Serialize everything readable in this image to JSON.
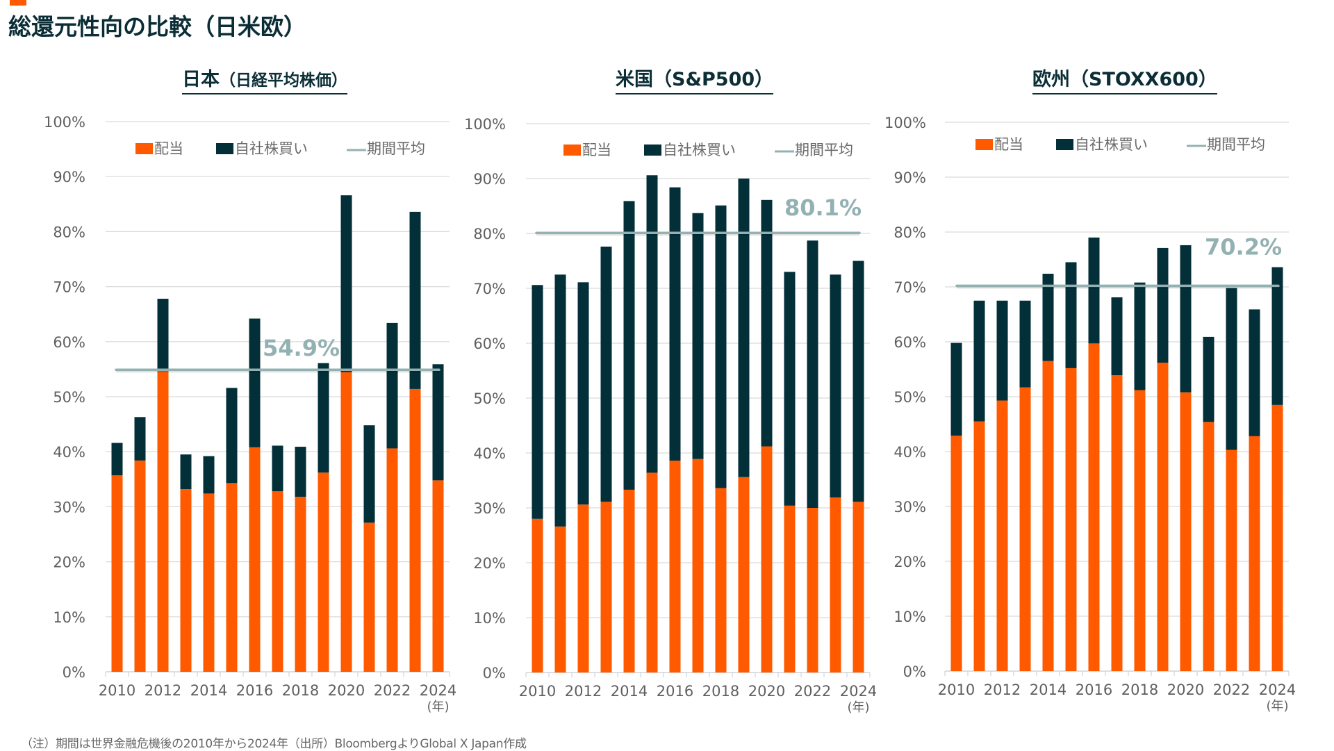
{
  "title": "総還元性向の比較（日米欧）",
  "footnote": "（注）期間は世界金融危機後の2010年から2024年（出所）BloombergよりGlobal X Japan作成",
  "colors": {
    "accent": "#ff5a00",
    "dividend": "#ff5a00",
    "buyback": "#032f38",
    "average": "#93b1b2",
    "grid": "#d9d9d9",
    "title": "#0b2e36"
  },
  "legend": {
    "dividend": "配当",
    "buyback": "自社株買い",
    "average": "期間平均"
  },
  "chart_data": [
    {
      "type": "bar",
      "stacked": true,
      "title": "日本",
      "subtitle": "（日経平均株価）",
      "xlabel": "",
      "x_unit": "(年)",
      "ylabel": "",
      "ylim": [
        0,
        100
      ],
      "y_ticks": [
        "0%",
        "10%",
        "20%",
        "30%",
        "40%",
        "50%",
        "60%",
        "70%",
        "80%",
        "90%",
        "100%"
      ],
      "grid": true,
      "legend_position": "top",
      "categories": [
        "2010",
        "2011",
        "2012",
        "2013",
        "2014",
        "2015",
        "2016",
        "2017",
        "2018",
        "2019",
        "2020",
        "2021",
        "2022",
        "2023",
        "2024"
      ],
      "x_tick_labels": [
        "2010",
        "2012",
        "2014",
        "2016",
        "2018",
        "2020",
        "2022",
        "2024"
      ],
      "series": [
        {
          "name": "配当",
          "values": [
            35.7,
            38.4,
            54.8,
            33.2,
            32.4,
            34.3,
            40.8,
            32.8,
            31.8,
            36.2,
            54.5,
            27.1,
            40.6,
            51.4,
            34.8
          ]
        },
        {
          "name": "自社株買い",
          "values": [
            5.9,
            7.9,
            13.0,
            6.3,
            6.8,
            17.3,
            23.4,
            8.3,
            9.1,
            19.9,
            32.1,
            17.7,
            22.8,
            32.2,
            21.1
          ]
        }
      ],
      "totals": [
        41.6,
        46.3,
        67.8,
        39.5,
        39.2,
        51.6,
        64.2,
        41.1,
        40.9,
        56.1,
        86.6,
        44.8,
        63.4,
        83.6,
        55.9
      ],
      "average": 54.9,
      "average_label": "54.9%"
    },
    {
      "type": "bar",
      "stacked": true,
      "title": "米国",
      "subtitle": "（S&P500）",
      "xlabel": "",
      "x_unit": "(年)",
      "ylabel": "",
      "ylim": [
        0,
        100
      ],
      "y_ticks": [
        "0%",
        "10%",
        "20%",
        "30%",
        "40%",
        "50%",
        "60%",
        "70%",
        "80%",
        "90%",
        "100%"
      ],
      "grid": true,
      "legend_position": "top",
      "categories": [
        "2010",
        "2011",
        "2012",
        "2013",
        "2014",
        "2015",
        "2016",
        "2017",
        "2018",
        "2019",
        "2020",
        "2021",
        "2022",
        "2023",
        "2024"
      ],
      "x_tick_labels": [
        "2010",
        "2012",
        "2014",
        "2016",
        "2018",
        "2020",
        "2022",
        "2024"
      ],
      "series": [
        {
          "name": "配当",
          "values": [
            28.0,
            26.6,
            30.6,
            31.1,
            33.3,
            36.4,
            38.6,
            38.9,
            33.6,
            35.6,
            41.2,
            30.4,
            30.0,
            31.9,
            31.1
          ]
        },
        {
          "name": "自社株買い",
          "values": [
            42.6,
            45.9,
            40.5,
            46.5,
            52.6,
            54.2,
            49.8,
            44.8,
            51.5,
            54.4,
            44.9,
            42.6,
            48.7,
            40.6,
            43.9
          ]
        }
      ],
      "totals": [
        70.6,
        72.5,
        71.1,
        77.6,
        85.9,
        90.6,
        88.4,
        83.7,
        85.1,
        90.0,
        86.1,
        73.0,
        78.7,
        72.5,
        75.0
      ],
      "average": 80.1,
      "average_label": "80.1%"
    },
    {
      "type": "bar",
      "stacked": true,
      "title": "欧州",
      "subtitle": "（STOXX600）",
      "xlabel": "",
      "x_unit": "(年)",
      "ylabel": "",
      "ylim": [
        0,
        100
      ],
      "y_ticks": [
        "0%",
        "10%",
        "20%",
        "30%",
        "40%",
        "50%",
        "60%",
        "70%",
        "80%",
        "90%",
        "100%"
      ],
      "grid": true,
      "legend_position": "top",
      "categories": [
        "2010",
        "2011",
        "2012",
        "2013",
        "2014",
        "2015",
        "2016",
        "2017",
        "2018",
        "2019",
        "2020",
        "2021",
        "2022",
        "2023",
        "2024"
      ],
      "x_tick_labels": [
        "2010",
        "2012",
        "2014",
        "2016",
        "2018",
        "2020",
        "2022",
        "2024"
      ],
      "series": [
        {
          "name": "配当",
          "values": [
            42.9,
            45.5,
            49.3,
            51.7,
            56.5,
            55.2,
            59.7,
            53.9,
            51.2,
            56.2,
            50.8,
            45.4,
            40.3,
            42.8,
            48.5
          ]
        },
        {
          "name": "自社株買い",
          "values": [
            16.9,
            22.0,
            18.2,
            15.8,
            15.9,
            19.3,
            19.3,
            14.2,
            19.6,
            20.9,
            26.8,
            15.5,
            29.5,
            23.1,
            25.1
          ]
        }
      ],
      "totals": [
        59.8,
        67.5,
        67.5,
        67.5,
        72.4,
        74.5,
        79.0,
        68.1,
        70.8,
        77.1,
        77.6,
        60.9,
        69.8,
        65.9,
        73.6
      ],
      "average": 70.2,
      "average_label": "70.2%"
    }
  ]
}
